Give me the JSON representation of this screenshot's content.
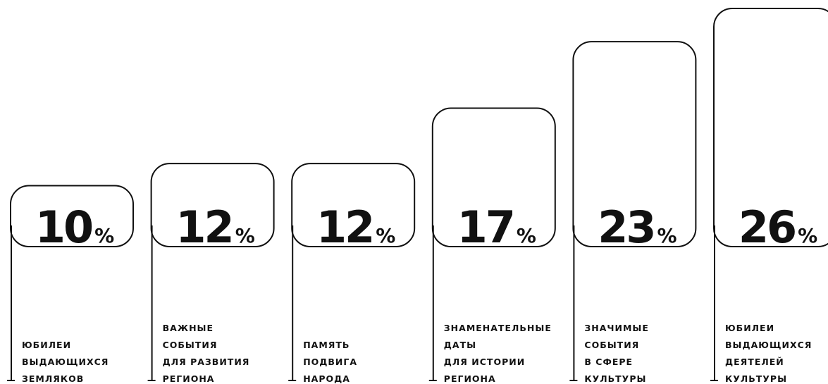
{
  "chart_data": {
    "type": "bar",
    "categories": [
      "ЮБИЛЕИ\nВЫДАЮЩИХСЯ\nЗЕМЛЯКОВ",
      "ВАЖНЫЕ\nСОБЫТИЯ\nДЛЯ РАЗВИТИЯ\nРЕГИОНА",
      "ПАМЯТЬ\nПОДВИГА\nНАРОДА",
      "ЗНАМЕНАТЕЛЬНЫЕ\nДАТЫ\nДЛЯ ИСТОРИИ\nРЕГИОНА",
      "ЗНАЧИМЫЕ\nСОБЫТИЯ\nВ СФЕРЕ\nКУЛЬТУРЫ",
      "ЮБИЛЕИ\nВЫДАЮЩИХСЯ\nДЕЯТЕЛЕЙ\nКУЛЬТУРЫ"
    ],
    "values": [
      10,
      12,
      12,
      17,
      23,
      26
    ],
    "value_labels": [
      "10%",
      "12%",
      "12%",
      "17%",
      "23%",
      "26%"
    ],
    "color": "#111111",
    "ylim": [
      4.5,
      26
    ]
  }
}
